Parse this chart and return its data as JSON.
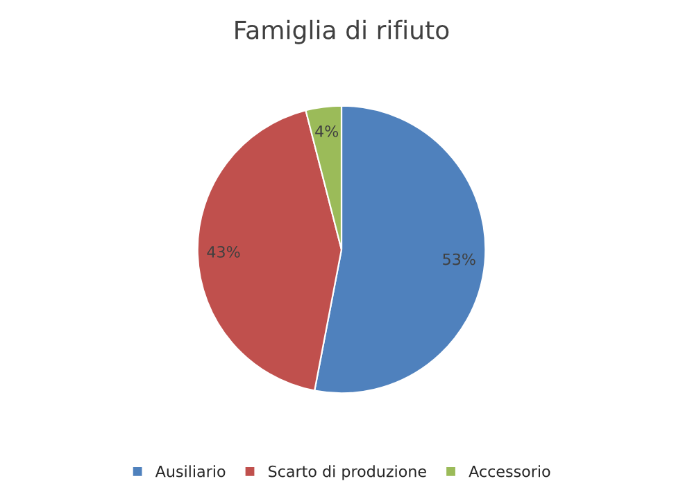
{
  "chart_data": {
    "type": "pie",
    "title": "Famiglia di rifiuto",
    "categories": [
      "Ausiliario",
      "Scarto di produzione",
      "Accessorio"
    ],
    "values": [
      53,
      43,
      4
    ],
    "colors": [
      "#4f81bd",
      "#c0504d",
      "#9bbb59"
    ],
    "value_labels": [
      "53%",
      "43%",
      "4%"
    ],
    "legend": "bottom"
  }
}
